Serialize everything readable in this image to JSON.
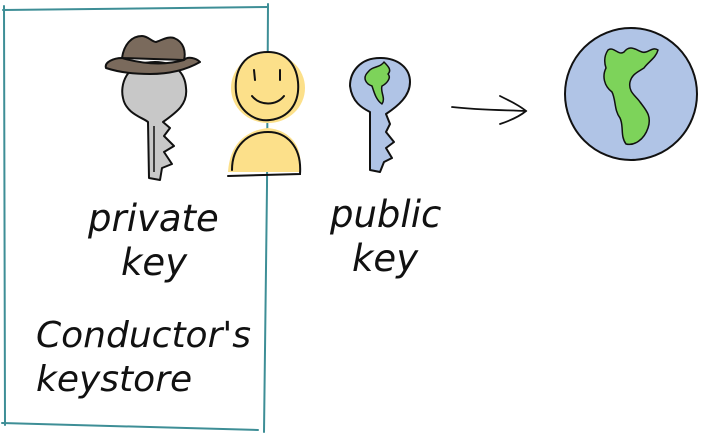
{
  "keystore": {
    "title_line1": "Conductor's",
    "title_line2": "keystore"
  },
  "private_key": {
    "label_line1": "private",
    "label_line2": "key",
    "color": "#c8c8c8",
    "hat_color": "#7a6a5c"
  },
  "person": {
    "color": "#fce08a"
  },
  "public_key": {
    "label_line1": "public",
    "label_line2": "key",
    "color": "#b0c4e6",
    "land_color": "#7dd35a"
  },
  "world": {
    "ocean_color": "#b0c4e6",
    "land_color": "#7dd35a"
  },
  "colors": {
    "box_border": "#3e8e96",
    "ink": "#111111"
  }
}
